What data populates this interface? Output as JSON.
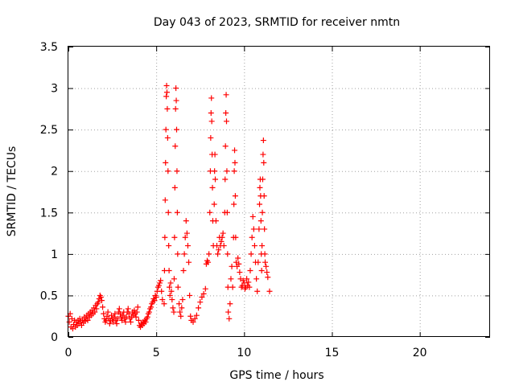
{
  "chart_data": {
    "type": "scatter",
    "title": "Day 043 of 2023, SRMTID for receiver nmtn",
    "xlabel": "GPS time / hours",
    "ylabel": "SRMTID / TECUs",
    "xlim": [
      0,
      24
    ],
    "ylim": [
      0,
      3.5
    ],
    "xticks": [
      "0",
      "5",
      "10",
      "15",
      "20"
    ],
    "xtick_values": [
      0,
      5,
      10,
      15,
      20
    ],
    "yticks": [
      "0",
      "0.5",
      "1",
      "1.5",
      "2",
      "2.5",
      "3",
      "3.5"
    ],
    "ytick_values": [
      0,
      0.5,
      1,
      1.5,
      2,
      2.5,
      3,
      3.5
    ],
    "grid": true,
    "marker": "+",
    "color": "#ff0000",
    "series": [
      {
        "points": [
          [
            0.0,
            0.25
          ],
          [
            0.05,
            0.18
          ],
          [
            0.1,
            0.28
          ],
          [
            0.15,
            0.12
          ],
          [
            0.2,
            0.22
          ],
          [
            0.25,
            0.1
          ],
          [
            0.3,
            0.15
          ],
          [
            0.35,
            0.2
          ],
          [
            0.4,
            0.12
          ],
          [
            0.45,
            0.18
          ],
          [
            0.5,
            0.14
          ],
          [
            0.55,
            0.2
          ],
          [
            0.6,
            0.16
          ],
          [
            0.65,
            0.22
          ],
          [
            0.7,
            0.18
          ],
          [
            0.75,
            0.14
          ],
          [
            0.8,
            0.2
          ],
          [
            0.85,
            0.17
          ],
          [
            0.9,
            0.24
          ],
          [
            0.95,
            0.19
          ],
          [
            1.0,
            0.22
          ],
          [
            1.05,
            0.26
          ],
          [
            1.1,
            0.2
          ],
          [
            1.15,
            0.28
          ],
          [
            1.2,
            0.24
          ],
          [
            1.25,
            0.3
          ],
          [
            1.3,
            0.26
          ],
          [
            1.35,
            0.32
          ],
          [
            1.4,
            0.28
          ],
          [
            1.45,
            0.35
          ],
          [
            1.5,
            0.3
          ],
          [
            1.55,
            0.38
          ],
          [
            1.6,
            0.34
          ],
          [
            1.65,
            0.4
          ],
          [
            1.7,
            0.42
          ],
          [
            1.75,
            0.46
          ],
          [
            1.8,
            0.5
          ],
          [
            1.85,
            0.48
          ],
          [
            1.9,
            0.44
          ],
          [
            1.95,
            0.36
          ],
          [
            2.0,
            0.28
          ],
          [
            2.05,
            0.22
          ],
          [
            2.1,
            0.18
          ],
          [
            2.15,
            0.2
          ],
          [
            2.2,
            0.25
          ],
          [
            2.25,
            0.3
          ],
          [
            2.3,
            0.22
          ],
          [
            2.35,
            0.16
          ],
          [
            2.4,
            0.2
          ],
          [
            2.45,
            0.26
          ],
          [
            2.5,
            0.22
          ],
          [
            2.55,
            0.18
          ],
          [
            2.6,
            0.24
          ],
          [
            2.65,
            0.28
          ],
          [
            2.7,
            0.2
          ],
          [
            2.75,
            0.16
          ],
          [
            2.8,
            0.22
          ],
          [
            2.85,
            0.3
          ],
          [
            2.9,
            0.34
          ],
          [
            2.95,
            0.28
          ],
          [
            3.0,
            0.24
          ],
          [
            3.05,
            0.2
          ],
          [
            3.1,
            0.26
          ],
          [
            3.15,
            0.3
          ],
          [
            3.2,
            0.22
          ],
          [
            3.25,
            0.18
          ],
          [
            3.3,
            0.24
          ],
          [
            3.35,
            0.3
          ],
          [
            3.4,
            0.34
          ],
          [
            3.45,
            0.28
          ],
          [
            3.5,
            0.22
          ],
          [
            3.55,
            0.18
          ],
          [
            3.6,
            0.24
          ],
          [
            3.65,
            0.3
          ],
          [
            3.7,
            0.26
          ],
          [
            3.75,
            0.32
          ],
          [
            3.8,
            0.28
          ],
          [
            3.85,
            0.24
          ],
          [
            3.9,
            0.3
          ],
          [
            3.95,
            0.36
          ],
          [
            4.0,
            0.2
          ],
          [
            4.05,
            0.14
          ],
          [
            4.1,
            0.12
          ],
          [
            4.15,
            0.16
          ],
          [
            4.2,
            0.14
          ],
          [
            4.25,
            0.18
          ],
          [
            4.3,
            0.16
          ],
          [
            4.35,
            0.2
          ],
          [
            4.4,
            0.18
          ],
          [
            4.45,
            0.22
          ],
          [
            4.5,
            0.24
          ],
          [
            4.55,
            0.28
          ],
          [
            4.6,
            0.3
          ],
          [
            4.65,
            0.34
          ],
          [
            4.7,
            0.36
          ],
          [
            4.75,
            0.4
          ],
          [
            4.8,
            0.42
          ],
          [
            4.85,
            0.46
          ],
          [
            4.9,
            0.44
          ],
          [
            4.95,
            0.5
          ],
          [
            5.0,
            0.48
          ],
          [
            5.05,
            0.55
          ],
          [
            5.1,
            0.6
          ],
          [
            5.15,
            0.62
          ],
          [
            5.2,
            0.65
          ],
          [
            5.25,
            0.68
          ],
          [
            5.3,
            0.55
          ],
          [
            5.35,
            0.45
          ],
          [
            5.45,
            0.4
          ],
          [
            5.47,
            0.8
          ],
          [
            5.49,
            1.2
          ],
          [
            5.51,
            1.65
          ],
          [
            5.53,
            2.1
          ],
          [
            5.55,
            2.5
          ],
          [
            5.57,
            2.9
          ],
          [
            5.59,
            3.03
          ],
          [
            5.61,
            2.95
          ],
          [
            5.63,
            2.75
          ],
          [
            5.65,
            2.4
          ],
          [
            5.67,
            2.0
          ],
          [
            5.69,
            1.5
          ],
          [
            5.71,
            1.1
          ],
          [
            5.73,
            0.8
          ],
          [
            5.75,
            0.6
          ],
          [
            5.78,
            0.5
          ],
          [
            5.82,
            0.65
          ],
          [
            5.86,
            0.55
          ],
          [
            5.9,
            0.45
          ],
          [
            5.95,
            0.35
          ],
          [
            6.0,
            0.3
          ],
          [
            6.02,
            0.7
          ],
          [
            6.04,
            1.2
          ],
          [
            6.06,
            1.8
          ],
          [
            6.08,
            2.3
          ],
          [
            6.1,
            2.75
          ],
          [
            6.12,
            3.0
          ],
          [
            6.14,
            2.85
          ],
          [
            6.16,
            2.5
          ],
          [
            6.18,
            2.0
          ],
          [
            6.2,
            1.5
          ],
          [
            6.22,
            1.0
          ],
          [
            6.24,
            0.6
          ],
          [
            6.3,
            0.4
          ],
          [
            6.35,
            0.3
          ],
          [
            6.4,
            0.25
          ],
          [
            6.45,
            0.35
          ],
          [
            6.5,
            0.45
          ],
          [
            6.55,
            0.8
          ],
          [
            6.6,
            1.0
          ],
          [
            6.65,
            1.2
          ],
          [
            6.7,
            1.4
          ],
          [
            6.75,
            1.25
          ],
          [
            6.8,
            1.1
          ],
          [
            6.85,
            0.9
          ],
          [
            6.9,
            0.5
          ],
          [
            6.95,
            0.25
          ],
          [
            7.0,
            0.2
          ],
          [
            7.1,
            0.18
          ],
          [
            7.2,
            0.22
          ],
          [
            7.3,
            0.26
          ],
          [
            7.4,
            0.35
          ],
          [
            7.5,
            0.42
          ],
          [
            7.6,
            0.48
          ],
          [
            7.7,
            0.52
          ],
          [
            7.8,
            0.58
          ],
          [
            7.85,
            0.88
          ],
          [
            7.9,
            0.92
          ],
          [
            7.95,
            0.9
          ],
          [
            8.0,
            1.0
          ],
          [
            8.05,
            1.5
          ],
          [
            8.08,
            2.0
          ],
          [
            8.1,
            2.4
          ],
          [
            8.12,
            2.7
          ],
          [
            8.14,
            2.88
          ],
          [
            8.16,
            2.6
          ],
          [
            8.18,
            2.2
          ],
          [
            8.2,
            1.8
          ],
          [
            8.22,
            1.4
          ],
          [
            8.25,
            1.1
          ],
          [
            8.3,
            1.6
          ],
          [
            8.32,
            2.0
          ],
          [
            8.34,
            2.2
          ],
          [
            8.36,
            1.9
          ],
          [
            8.4,
            1.4
          ],
          [
            8.45,
            1.1
          ],
          [
            8.5,
            1.0
          ],
          [
            8.55,
            1.05
          ],
          [
            8.6,
            1.2
          ],
          [
            8.65,
            1.1
          ],
          [
            8.7,
            1.15
          ],
          [
            8.75,
            1.2
          ],
          [
            8.8,
            1.25
          ],
          [
            8.85,
            1.1
          ],
          [
            8.9,
            1.5
          ],
          [
            8.92,
            1.9
          ],
          [
            8.94,
            2.3
          ],
          [
            8.96,
            2.7
          ],
          [
            8.98,
            2.92
          ],
          [
            9.0,
            2.6
          ],
          [
            9.02,
            2.0
          ],
          [
            9.04,
            1.5
          ],
          [
            9.06,
            1.0
          ],
          [
            9.08,
            0.6
          ],
          [
            9.1,
            0.3
          ],
          [
            9.15,
            0.22
          ],
          [
            9.2,
            0.4
          ],
          [
            9.25,
            0.7
          ],
          [
            9.3,
            0.85
          ],
          [
            9.35,
            0.6
          ],
          [
            9.4,
            1.2
          ],
          [
            9.42,
            1.6
          ],
          [
            9.44,
            2.0
          ],
          [
            9.46,
            2.25
          ],
          [
            9.48,
            2.1
          ],
          [
            9.5,
            1.7
          ],
          [
            9.52,
            1.2
          ],
          [
            9.55,
            0.9
          ],
          [
            9.6,
            0.85
          ],
          [
            9.65,
            0.95
          ],
          [
            9.7,
            0.88
          ],
          [
            9.75,
            0.78
          ],
          [
            9.8,
            0.7
          ],
          [
            9.85,
            0.6
          ],
          [
            9.9,
            0.62
          ],
          [
            9.95,
            0.68
          ],
          [
            10.0,
            0.65
          ],
          [
            10.05,
            0.58
          ],
          [
            10.1,
            0.6
          ],
          [
            10.15,
            0.7
          ],
          [
            10.2,
            0.62
          ],
          [
            10.25,
            0.66
          ],
          [
            10.3,
            0.6
          ],
          [
            10.35,
            0.8
          ],
          [
            10.4,
            1.0
          ],
          [
            10.45,
            1.2
          ],
          [
            10.5,
            1.45
          ],
          [
            10.55,
            1.3
          ],
          [
            10.6,
            1.1
          ],
          [
            10.65,
            0.9
          ],
          [
            10.7,
            0.7
          ],
          [
            10.75,
            0.55
          ],
          [
            10.8,
            0.9
          ],
          [
            10.85,
            1.3
          ],
          [
            10.88,
            1.6
          ],
          [
            10.9,
            1.8
          ],
          [
            10.92,
            1.9
          ],
          [
            10.94,
            1.7
          ],
          [
            10.96,
            1.4
          ],
          [
            10.98,
            1.0
          ],
          [
            11.0,
            0.8
          ],
          [
            11.02,
            1.1
          ],
          [
            11.04,
            1.5
          ],
          [
            11.06,
            1.9
          ],
          [
            11.08,
            2.2
          ],
          [
            11.1,
            2.37
          ],
          [
            11.12,
            2.1
          ],
          [
            11.14,
            1.7
          ],
          [
            11.16,
            1.3
          ],
          [
            11.18,
            1.0
          ],
          [
            11.2,
            0.9
          ],
          [
            11.25,
            0.85
          ],
          [
            11.3,
            0.78
          ],
          [
            11.35,
            0.72
          ],
          [
            11.45,
            0.55
          ]
        ]
      }
    ]
  }
}
